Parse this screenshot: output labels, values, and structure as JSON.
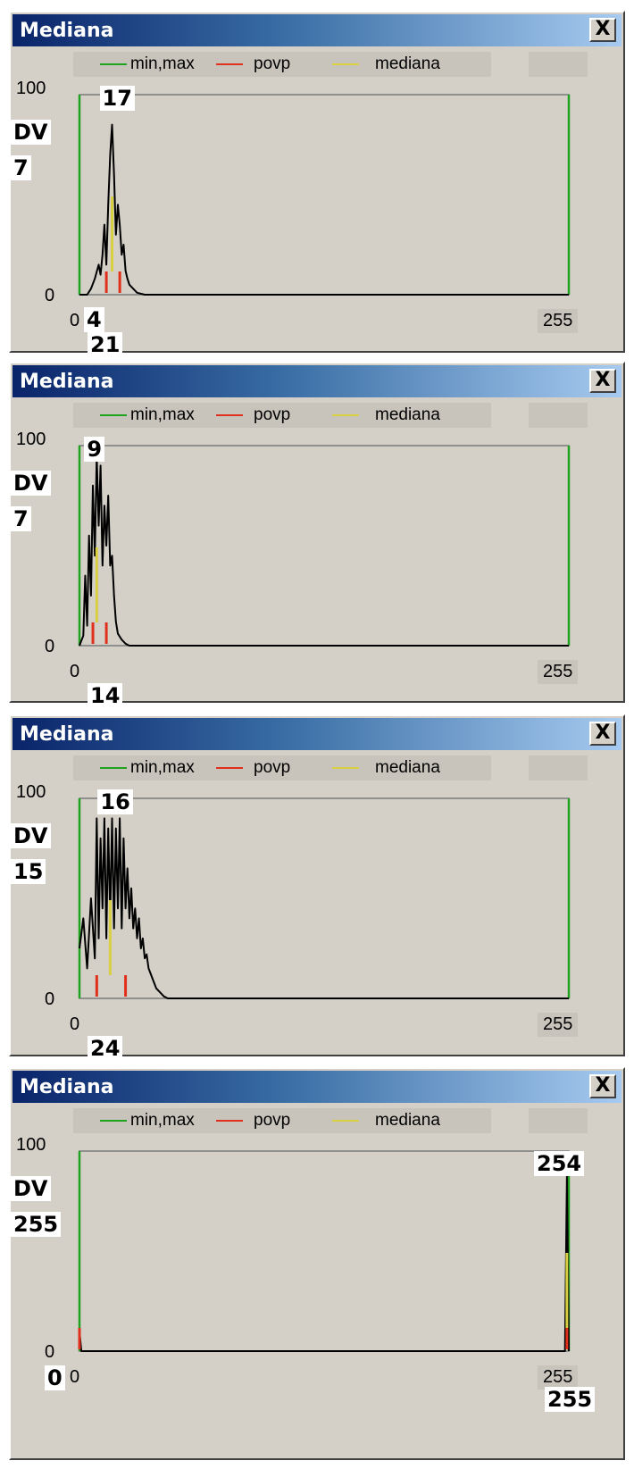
{
  "colors": {
    "minmax": "#1fa31f",
    "povp": "#e0301c",
    "mediana": "#d8d040",
    "hist": "#000000"
  },
  "panels": [
    {
      "title": "Mediana",
      "close_label": "X",
      "legend": {
        "minmax": "min,max",
        "povp": "povp",
        "mediana": "mediana"
      },
      "y_max": "100",
      "y_min": "0",
      "dv_label": "DV",
      "dv_value": "7",
      "peak_label": "17",
      "x_min": "0",
      "x_max": "255",
      "bottom_left_label": "4",
      "bottom_label": "21",
      "extra_label": "",
      "bottom_right_label": "",
      "chart_data": {
        "type": "line",
        "xlim": [
          0,
          255
        ],
        "ylim": [
          0,
          100
        ],
        "min": 0,
        "max": 255,
        "povp_x": [
          14,
          21
        ],
        "mediana_x": [
          17
        ],
        "x": [
          0,
          4,
          6,
          8,
          10,
          11,
          12,
          13,
          14,
          15,
          16,
          17,
          18,
          19,
          20,
          21,
          22,
          23,
          24,
          25,
          26,
          28,
          30,
          34,
          40,
          255
        ],
        "y": [
          0,
          0,
          3,
          8,
          15,
          10,
          20,
          35,
          15,
          45,
          70,
          85,
          60,
          30,
          45,
          35,
          20,
          25,
          12,
          8,
          5,
          3,
          1,
          0,
          0,
          0
        ]
      }
    },
    {
      "title": "Mediana",
      "close_label": "X",
      "legend": {
        "minmax": "min,max",
        "povp": "povp",
        "mediana": "mediana"
      },
      "y_max": "100",
      "y_min": "0",
      "dv_label": "DV",
      "dv_value": "7",
      "peak_label": "9",
      "x_min": "0",
      "x_max": "255",
      "bottom_left_label": "",
      "bottom_label": "14",
      "extra_label": "",
      "bottom_right_label": "",
      "chart_data": {
        "type": "line",
        "xlim": [
          0,
          255
        ],
        "ylim": [
          0,
          100
        ],
        "min": 0,
        "max": 255,
        "povp_x": [
          7,
          14
        ],
        "mediana_x": [
          9
        ],
        "x": [
          0,
          2,
          3,
          4,
          5,
          6,
          7,
          8,
          9,
          10,
          11,
          12,
          13,
          14,
          15,
          16,
          17,
          18,
          19,
          20,
          22,
          24,
          26,
          30,
          255
        ],
        "y": [
          0,
          5,
          35,
          10,
          55,
          25,
          80,
          45,
          95,
          60,
          90,
          40,
          70,
          50,
          75,
          40,
          45,
          25,
          12,
          6,
          3,
          1,
          0,
          0,
          0
        ]
      }
    },
    {
      "title": "Mediana",
      "close_label": "X",
      "legend": {
        "minmax": "min,max",
        "povp": "povp",
        "mediana": "mediana"
      },
      "y_max": "100",
      "y_min": "0",
      "dv_label": "DV",
      "dv_value": "15",
      "peak_label": "16",
      "x_min": "0",
      "x_max": "255",
      "bottom_left_label": "",
      "bottom_label": "24",
      "extra_label": "",
      "bottom_right_label": "",
      "chart_data": {
        "type": "line",
        "xlim": [
          0,
          255
        ],
        "ylim": [
          0,
          100
        ],
        "min": 0,
        "max": 255,
        "povp_x": [
          9,
          24
        ],
        "mediana_x": [
          16
        ],
        "x": [
          0,
          2,
          4,
          6,
          8,
          9,
          10,
          11,
          12,
          13,
          14,
          15,
          16,
          17,
          18,
          19,
          20,
          21,
          22,
          23,
          24,
          25,
          26,
          27,
          28,
          29,
          30,
          31,
          32,
          33,
          34,
          35,
          36,
          38,
          40,
          42,
          44,
          46,
          50,
          255
        ],
        "y": [
          25,
          40,
          15,
          50,
          20,
          90,
          30,
          80,
          45,
          90,
          30,
          85,
          40,
          90,
          35,
          85,
          45,
          90,
          35,
          80,
          45,
          65,
          40,
          55,
          35,
          45,
          30,
          40,
          25,
          30,
          20,
          22,
          15,
          10,
          5,
          3,
          1,
          0,
          0,
          0
        ]
      }
    },
    {
      "title": "Mediana",
      "close_label": "X",
      "legend": {
        "minmax": "min,max",
        "povp": "povp",
        "mediana": "mediana"
      },
      "y_max": "100",
      "y_min": "0",
      "dv_label": "DV",
      "dv_value": "255",
      "peak_label": "254",
      "x_min": "0",
      "x_max": "255",
      "bottom_left_label": "",
      "bottom_label": "",
      "extra_label": "0",
      "bottom_right_label": "255",
      "chart_data": {
        "type": "line",
        "xlim": [
          0,
          255
        ],
        "ylim": [
          0,
          100
        ],
        "min": 0,
        "max": 255,
        "povp_x": [
          0,
          254
        ],
        "mediana_x": [
          254
        ],
        "x": [
          0,
          1,
          2,
          252,
          253,
          254,
          255
        ],
        "y": [
          10,
          0,
          0,
          0,
          0,
          88,
          0
        ]
      }
    }
  ]
}
